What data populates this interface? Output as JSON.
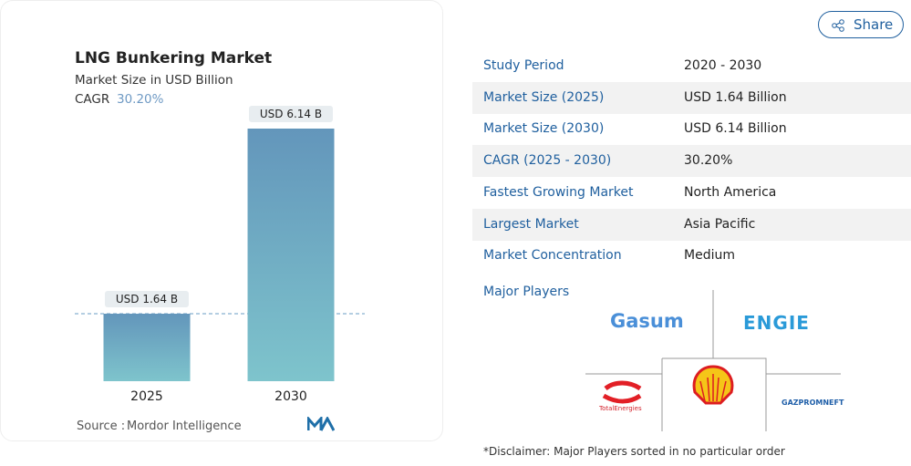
{
  "chart_data": {
    "type": "bar",
    "title": "LNG Bunkering Market",
    "subtitle": "Market Size in USD Billion",
    "cagr_label": "CAGR",
    "cagr_value": "30.20%",
    "categories": [
      "2025",
      "2030"
    ],
    "values": [
      1.64,
      6.14
    ],
    "value_labels": [
      "USD 1.64 B",
      "USD 6.14 B"
    ],
    "color_top": "#6396bb",
    "color_bottom": "#7ec4cc",
    "source_label": "Source :",
    "source": "Mordor Intelligence"
  },
  "share": "Share",
  "summary": {
    "rows": [
      [
        "Study Period",
        "2020 - 2030"
      ],
      [
        "Market Size (2025)",
        "USD 1.64 Billion"
      ],
      [
        "Market Size (2030)",
        "USD 6.14 Billion"
      ],
      [
        "CAGR (2025 - 2030)",
        "30.20%"
      ],
      [
        "Fastest Growing Market",
        "North America"
      ],
      [
        "Largest Market",
        "Asia Pacific"
      ],
      [
        "Market Concentration",
        "Medium"
      ]
    ]
  },
  "major_players": {
    "label": "Major Players",
    "logos": [
      "Gasum",
      "ENGIE",
      "TotalEnergies",
      "GAZPROMNEFT"
    ]
  },
  "disclaimer": "*Disclaimer: Major Players sorted in no particular order"
}
